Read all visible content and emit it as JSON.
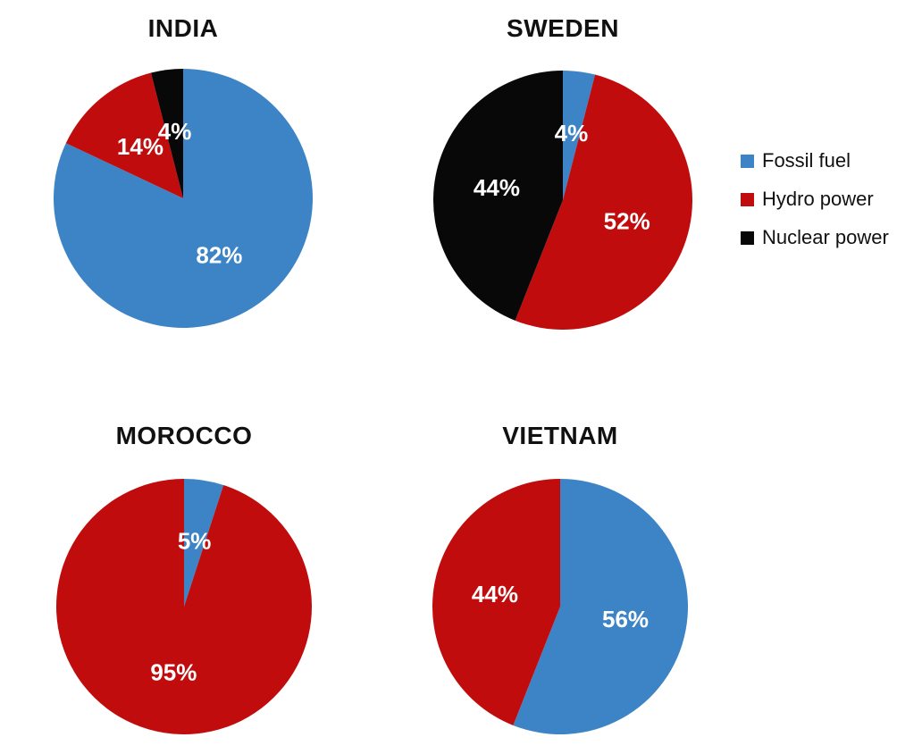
{
  "figure": {
    "background": "#ffffff"
  },
  "chart_data": {
    "type": "pie",
    "unit": "percent",
    "categories": [
      "Fossil fuel",
      "Hydro power",
      "Nuclear power"
    ],
    "colors": [
      "#3c84c6",
      "#c00c0c",
      "#080808"
    ],
    "data_label_color": "#ffffff",
    "start_angle_deg": 0,
    "direction": "clockwise",
    "grid": false,
    "legend_position": "right",
    "legend": [
      "Fossil fuel",
      "Hydro power",
      "Nuclear power"
    ],
    "charts": [
      {
        "title": "INDIA",
        "values": [
          82,
          14,
          4
        ],
        "data_labels": [
          "82%",
          "14%",
          "4%"
        ]
      },
      {
        "title": "SWEDEN",
        "values": [
          4,
          52,
          44
        ],
        "data_labels": [
          "4%",
          "52%",
          "44%"
        ]
      },
      {
        "title": "MOROCCO",
        "values": [
          5,
          95,
          0
        ],
        "data_labels": [
          "5%",
          "95%",
          ""
        ]
      },
      {
        "title": "VIETNAM",
        "values": [
          56,
          44,
          0
        ],
        "data_labels": [
          "56%",
          "44%",
          ""
        ]
      }
    ]
  }
}
